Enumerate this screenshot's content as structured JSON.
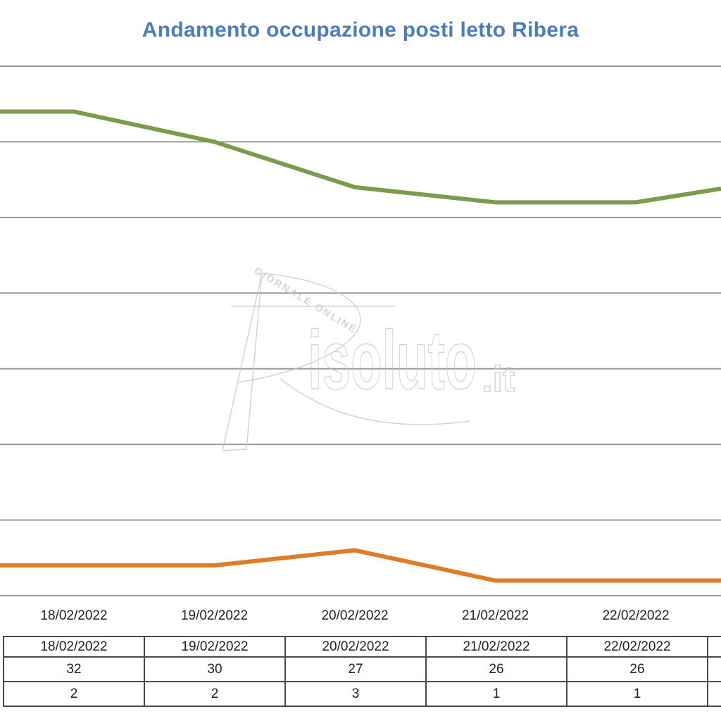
{
  "title": "Andamento occupazione posti letto Ribera",
  "chart_data": {
    "type": "line",
    "title": "Andamento occupazione posti letto Ribera",
    "categories": [
      "18/02/2022",
      "19/02/2022",
      "20/02/2022",
      "21/02/2022",
      "22/02/2022"
    ],
    "series": [
      {
        "id": "series-green",
        "color": "#7D9B4D",
        "values": [
          32,
          30,
          27,
          26,
          26
        ]
      },
      {
        "id": "series-orange",
        "color": "#DE7C29",
        "values": [
          2,
          2,
          3,
          1,
          1
        ]
      }
    ],
    "ylim": [
      0,
      35
    ],
    "y_grid_step": 5,
    "grid": true,
    "legend_position": "none",
    "cropped": "y-axis tick labels and the table row-header column are cut off at the left edge; both lines continue past the left and right image edges",
    "offscreen_continuation": {
      "left": {
        "series-green": "flat",
        "series-orange": "flat"
      },
      "right": {
        "series-green": "rising",
        "series-orange": "flat"
      }
    }
  },
  "x_axis": {
    "labels": [
      "18/02/2022",
      "19/02/2022",
      "20/02/2022",
      "21/02/2022",
      "22/02/2022"
    ]
  },
  "table": {
    "rows": [
      [
        "18/02/2022",
        "19/02/2022",
        "20/02/2022",
        "21/02/2022",
        "22/02/2022",
        ""
      ],
      [
        "32",
        "30",
        "27",
        "26",
        "26",
        ""
      ],
      [
        "2",
        "2",
        "3",
        "1",
        "1",
        ""
      ]
    ]
  },
  "watermark": {
    "logo_icon": "risoluto-r",
    "tagline": "GIORNALE ONLINE",
    "brand": "isoluto",
    "tld": ".it"
  },
  "colors": {
    "title": "#4A7EBB",
    "green_line": "#7D9B4D",
    "orange_line": "#DE7C29",
    "gridline": "#9A9A9A",
    "table_border": "#4A4A4A",
    "text": "#1F1F1F",
    "watermark": "#C6C6C6",
    "background": "#FFFFFF"
  }
}
